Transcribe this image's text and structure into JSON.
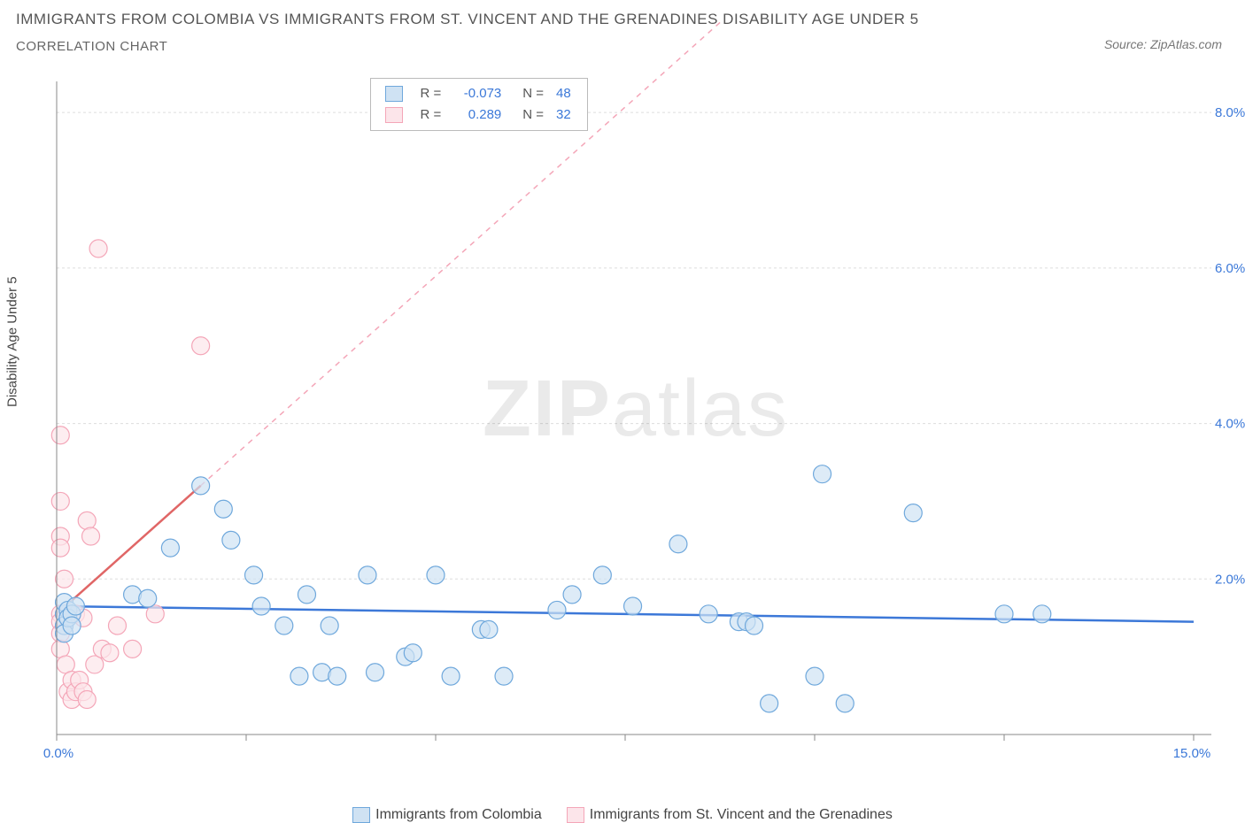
{
  "title_main": "IMMIGRANTS FROM COLOMBIA VS IMMIGRANTS FROM ST. VINCENT AND THE GRENADINES DISABILITY AGE UNDER 5",
  "title_sub": "CORRELATION CHART",
  "source_label": "Source: ",
  "source_name": "ZipAtlas.com",
  "watermark_bold": "ZIP",
  "watermark_light": "atlas",
  "y_axis_label": "Disability Age Under 5",
  "chart": {
    "type": "scatter",
    "xlim": [
      0,
      15
    ],
    "ylim": [
      0,
      8.4
    ],
    "x_ticks": [
      0,
      2.5,
      5,
      7.5,
      10,
      12.5,
      15
    ],
    "x_tick_labels": [
      "0.0%",
      "",
      "",
      "",
      "",
      "",
      "15.0%"
    ],
    "y_ticks": [
      2,
      4,
      6,
      8
    ],
    "y_tick_labels": [
      "2.0%",
      "4.0%",
      "6.0%",
      "8.0%"
    ],
    "grid_color": "#dddddd",
    "axis_color": "#888888",
    "marker_radius": 10,
    "marker_stroke_width": 1.2,
    "series": [
      {
        "id": "colombia",
        "label": "Immigrants from Colombia",
        "fill": "#cfe2f3",
        "stroke": "#6fa8dc",
        "reg_color": "#3c78d8",
        "reg_dash_color": "#a4c2f4",
        "R": "-0.073",
        "N": "48",
        "reg_line": {
          "x1": 0,
          "y1": 1.65,
          "x2": 15,
          "y2": 1.45
        },
        "reg_dash": null,
        "points": [
          [
            0.1,
            1.55
          ],
          [
            0.1,
            1.4
          ],
          [
            0.1,
            1.7
          ],
          [
            0.1,
            1.3
          ],
          [
            0.15,
            1.6
          ],
          [
            0.15,
            1.5
          ],
          [
            0.2,
            1.55
          ],
          [
            0.2,
            1.4
          ],
          [
            0.25,
            1.65
          ],
          [
            1.0,
            1.8
          ],
          [
            1.2,
            1.75
          ],
          [
            1.5,
            2.4
          ],
          [
            1.9,
            3.2
          ],
          [
            2.2,
            2.9
          ],
          [
            2.3,
            2.5
          ],
          [
            2.6,
            2.05
          ],
          [
            2.7,
            1.65
          ],
          [
            3.0,
            1.4
          ],
          [
            3.2,
            0.75
          ],
          [
            3.3,
            1.8
          ],
          [
            3.5,
            0.8
          ],
          [
            3.6,
            1.4
          ],
          [
            3.7,
            0.75
          ],
          [
            4.1,
            2.05
          ],
          [
            4.2,
            0.8
          ],
          [
            4.6,
            1.0
          ],
          [
            4.7,
            1.05
          ],
          [
            5.0,
            2.05
          ],
          [
            5.2,
            0.75
          ],
          [
            5.6,
            1.35
          ],
          [
            5.7,
            1.35
          ],
          [
            5.9,
            0.75
          ],
          [
            6.6,
            1.6
          ],
          [
            6.8,
            1.8
          ],
          [
            7.2,
            2.05
          ],
          [
            7.6,
            1.65
          ],
          [
            8.2,
            2.45
          ],
          [
            8.6,
            1.55
          ],
          [
            9.0,
            1.45
          ],
          [
            9.1,
            1.45
          ],
          [
            9.2,
            1.4
          ],
          [
            9.4,
            0.4
          ],
          [
            10.0,
            0.75
          ],
          [
            10.1,
            3.35
          ],
          [
            10.4,
            0.4
          ],
          [
            11.3,
            2.85
          ],
          [
            12.5,
            1.55
          ],
          [
            13.0,
            1.55
          ]
        ]
      },
      {
        "id": "stvincent",
        "label": "Immigrants from St. Vincent and the Grenadines",
        "fill": "#fce5ea",
        "stroke": "#f4a6b8",
        "reg_color": "#e06666",
        "reg_dash_color": "#f4a6b8",
        "R": "0.289",
        "N": "32",
        "reg_line": {
          "x1": 0,
          "y1": 1.55,
          "x2": 1.9,
          "y2": 3.2
        },
        "reg_dash": {
          "x1": 1.9,
          "y1": 3.2,
          "x2": 8.8,
          "y2": 9.2
        },
        "points": [
          [
            0.05,
            3.85
          ],
          [
            0.05,
            3.0
          ],
          [
            0.05,
            2.55
          ],
          [
            0.05,
            2.4
          ],
          [
            0.05,
            1.55
          ],
          [
            0.05,
            1.45
          ],
          [
            0.05,
            1.3
          ],
          [
            0.05,
            1.1
          ],
          [
            0.1,
            2.0
          ],
          [
            0.1,
            1.55
          ],
          [
            0.1,
            1.4
          ],
          [
            0.12,
            0.9
          ],
          [
            0.15,
            1.55
          ],
          [
            0.15,
            0.55
          ],
          [
            0.2,
            0.7
          ],
          [
            0.2,
            0.45
          ],
          [
            0.25,
            1.55
          ],
          [
            0.25,
            0.55
          ],
          [
            0.3,
            0.7
          ],
          [
            0.35,
            1.5
          ],
          [
            0.35,
            0.55
          ],
          [
            0.4,
            0.45
          ],
          [
            0.4,
            2.75
          ],
          [
            0.45,
            2.55
          ],
          [
            0.5,
            0.9
          ],
          [
            0.55,
            6.25
          ],
          [
            0.6,
            1.1
          ],
          [
            0.7,
            1.05
          ],
          [
            0.8,
            1.4
          ],
          [
            1.0,
            1.1
          ],
          [
            1.3,
            1.55
          ],
          [
            1.9,
            5.0
          ]
        ]
      }
    ],
    "stat_box": {
      "label_R": "R =",
      "label_N": "N =",
      "value_color": "#3b78d8"
    }
  },
  "legend_bottom": {
    "items": [
      {
        "series": "colombia"
      },
      {
        "series": "stvincent"
      }
    ]
  }
}
